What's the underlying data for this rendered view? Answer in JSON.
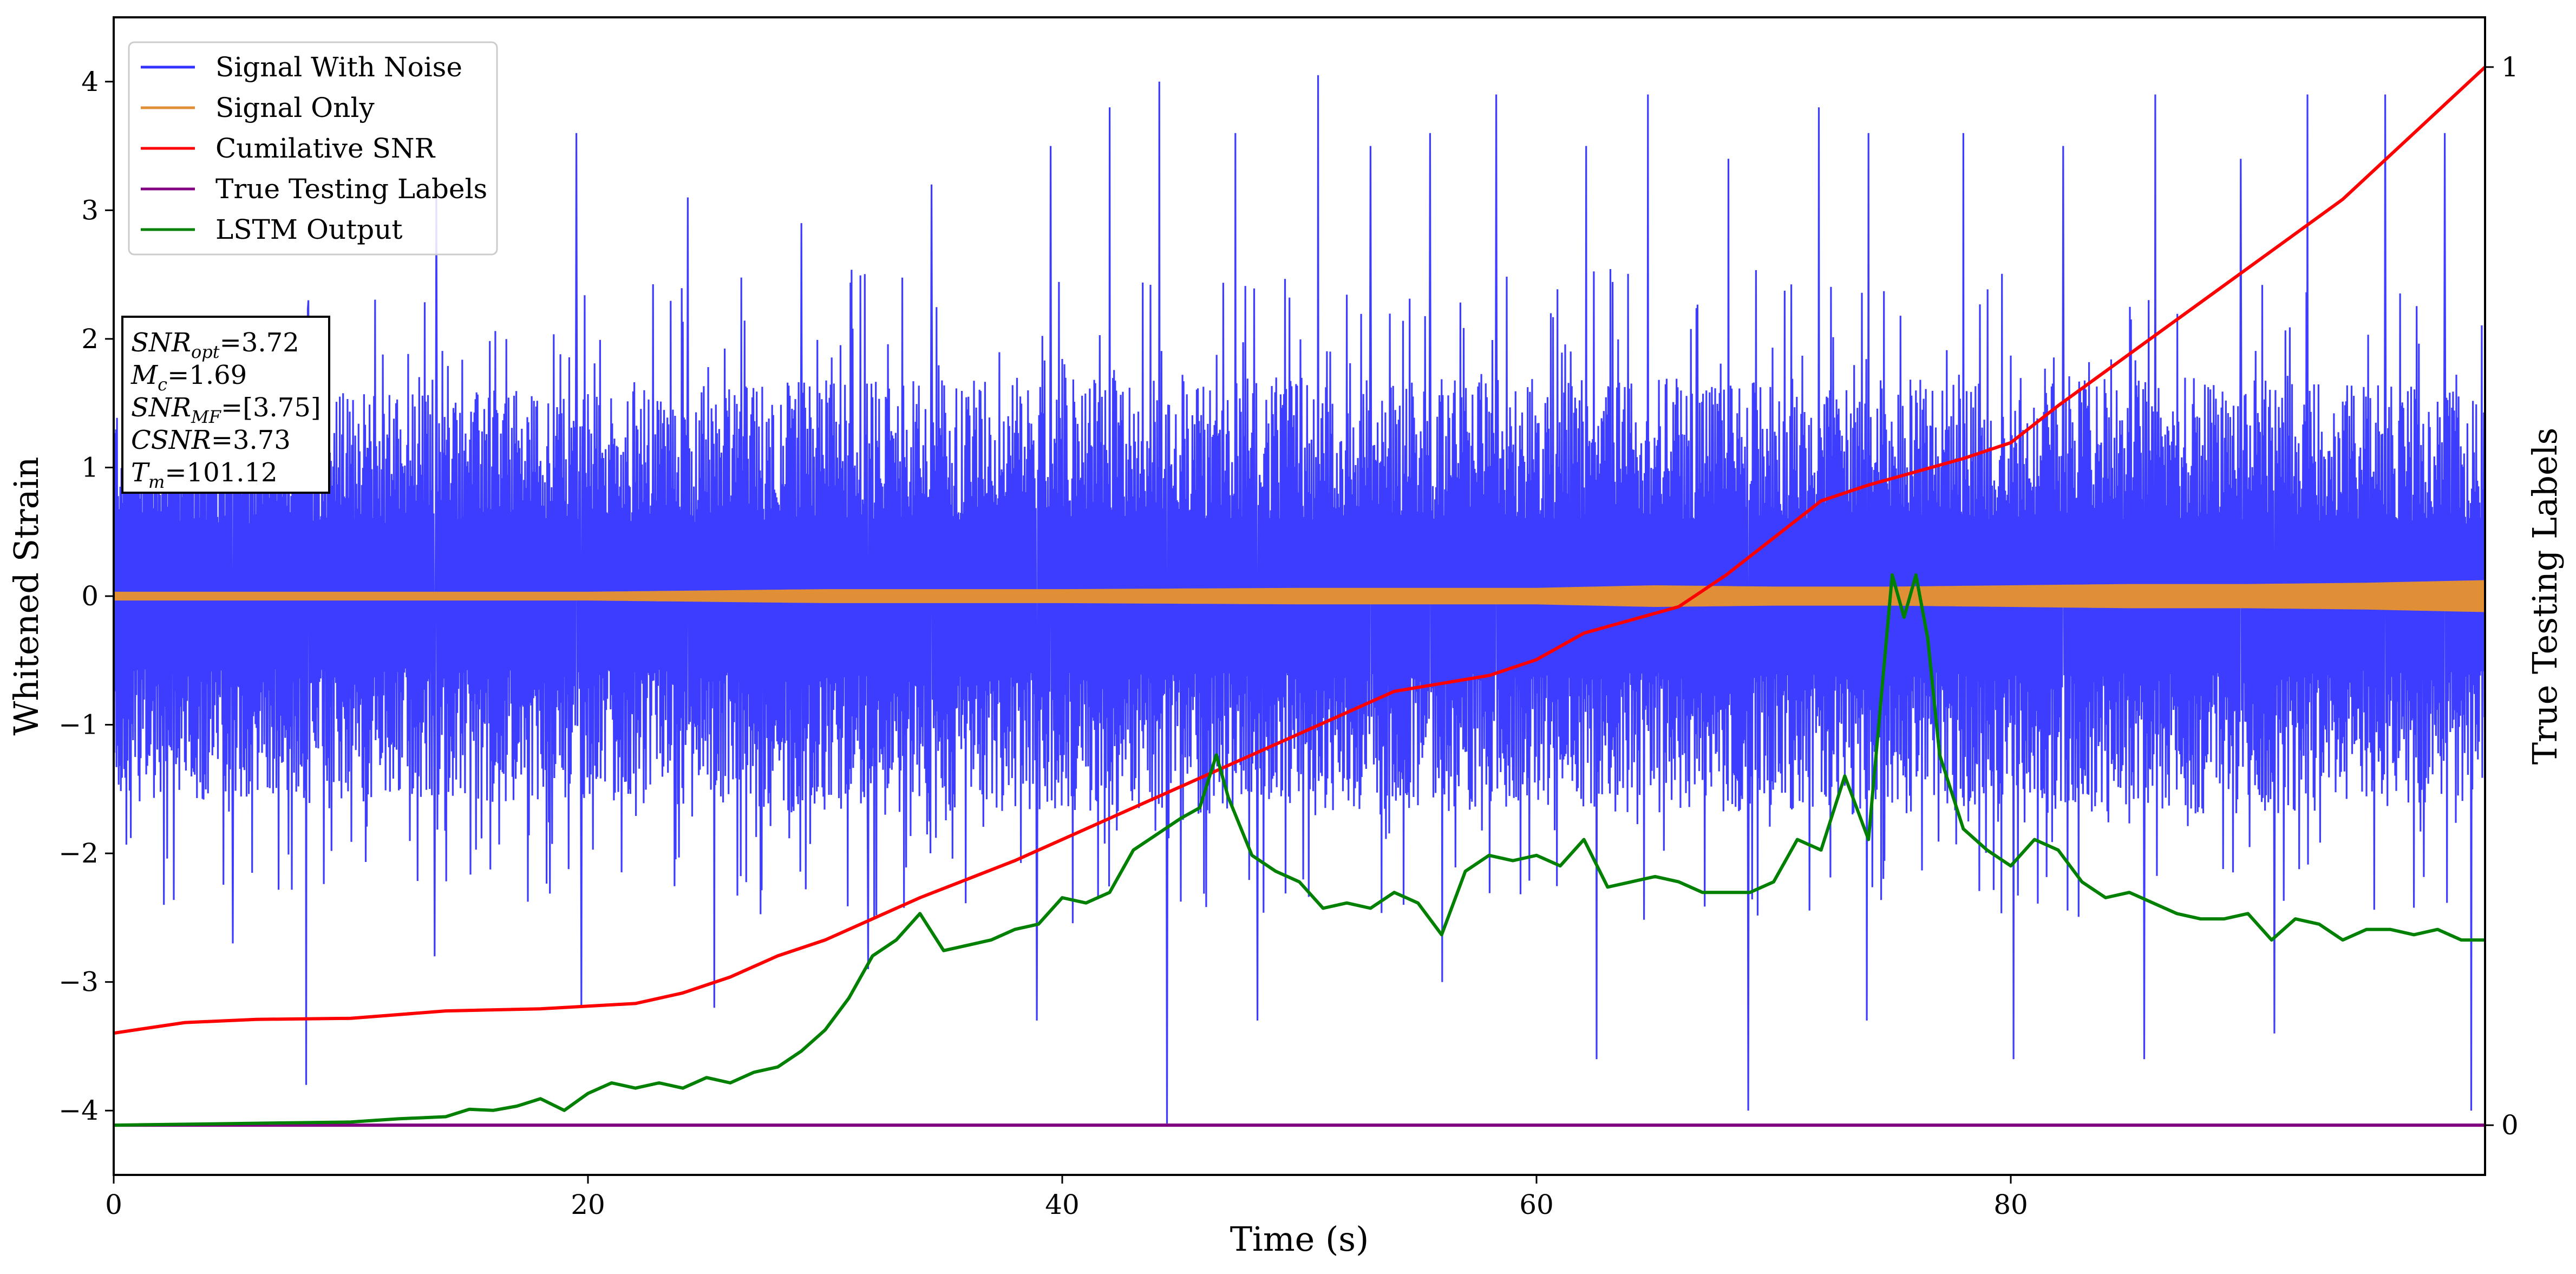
{
  "chart_data": {
    "type": "line",
    "xlabel": "Time (s)",
    "ylabel": "Whitened Strain",
    "y2label": "True Testing Labels",
    "xlim": [
      0,
      100
    ],
    "ylim": [
      -4.5,
      4.5
    ],
    "y2lim": [
      -0.047,
      1.047
    ],
    "xticks": [
      0,
      20,
      40,
      60,
      80
    ],
    "yticks": [
      -4,
      -3,
      -2,
      -1,
      0,
      1,
      2,
      3,
      4
    ],
    "y2ticks": [
      0,
      1
    ],
    "grid": false,
    "legend_position": "top-left",
    "colors": {
      "noise": "#3333ff",
      "signal": "#e08f37",
      "csnr": "#ff0000",
      "labels": "#800080",
      "lstm": "#008000"
    },
    "series": [
      {
        "name": "Signal With Noise",
        "axis": "left",
        "kind": "noise-band",
        "envelope_x": [
          0,
          10,
          20,
          30,
          40,
          50,
          60,
          70,
          80,
          90,
          100
        ],
        "core_upper": [
          1.6,
          1.6,
          1.6,
          1.7,
          1.7,
          1.7,
          1.7,
          1.7,
          1.7,
          1.7,
          1.6
        ],
        "core_lower": [
          -1.6,
          -1.6,
          -1.6,
          -1.7,
          -1.7,
          -1.7,
          -1.7,
          -1.7,
          -1.7,
          -1.7,
          -1.6
        ],
        "peaks_up": [
          {
            "x": 8.2,
            "y": 2.3
          },
          {
            "x": 13.6,
            "y": 3.2
          },
          {
            "x": 19.5,
            "y": 3.6
          },
          {
            "x": 24.2,
            "y": 3.1
          },
          {
            "x": 29.0,
            "y": 2.9
          },
          {
            "x": 34.5,
            "y": 3.2
          },
          {
            "x": 39.5,
            "y": 3.5
          },
          {
            "x": 42.0,
            "y": 3.8
          },
          {
            "x": 44.1,
            "y": 4.0
          },
          {
            "x": 47.3,
            "y": 3.6
          },
          {
            "x": 50.8,
            "y": 4.05
          },
          {
            "x": 53.0,
            "y": 3.5
          },
          {
            "x": 55.5,
            "y": 3.6
          },
          {
            "x": 58.3,
            "y": 3.9
          },
          {
            "x": 62.1,
            "y": 3.5
          },
          {
            "x": 64.7,
            "y": 3.9
          },
          {
            "x": 68.1,
            "y": 3.4
          },
          {
            "x": 71.9,
            "y": 3.8
          },
          {
            "x": 74.0,
            "y": 3.6
          },
          {
            "x": 78.0,
            "y": 3.6
          },
          {
            "x": 82.2,
            "y": 3.5
          },
          {
            "x": 86.1,
            "y": 3.9
          },
          {
            "x": 89.7,
            "y": 3.4
          },
          {
            "x": 92.5,
            "y": 3.9
          },
          {
            "x": 95.8,
            "y": 3.9
          },
          {
            "x": 98.3,
            "y": 3.6
          }
        ],
        "peaks_down": [
          {
            "x": 2.1,
            "y": -2.4
          },
          {
            "x": 5.0,
            "y": -2.7
          },
          {
            "x": 8.1,
            "y": -3.8
          },
          {
            "x": 13.5,
            "y": -2.8
          },
          {
            "x": 19.7,
            "y": -3.2
          },
          {
            "x": 25.3,
            "y": -3.2
          },
          {
            "x": 31.8,
            "y": -2.9
          },
          {
            "x": 38.9,
            "y": -3.3
          },
          {
            "x": 44.4,
            "y": -4.1
          },
          {
            "x": 48.2,
            "y": -3.3
          },
          {
            "x": 56.0,
            "y": -3.0
          },
          {
            "x": 62.5,
            "y": -3.6
          },
          {
            "x": 68.9,
            "y": -4.0
          },
          {
            "x": 73.9,
            "y": -3.3
          },
          {
            "x": 80.1,
            "y": -3.6
          },
          {
            "x": 85.6,
            "y": -3.6
          },
          {
            "x": 91.1,
            "y": -3.4
          },
          {
            "x": 99.4,
            "y": -4.0
          }
        ]
      },
      {
        "name": "Signal Only",
        "axis": "left",
        "kind": "chirp-band",
        "x": [
          0,
          10,
          20,
          25,
          30,
          40,
          50,
          60,
          65,
          70,
          75,
          80,
          85,
          90,
          95,
          100
        ],
        "amplitude": [
          0.03,
          0.03,
          0.03,
          0.04,
          0.05,
          0.05,
          0.06,
          0.06,
          0.08,
          0.07,
          0.07,
          0.08,
          0.09,
          0.09,
          0.1,
          0.12
        ]
      },
      {
        "name": "Cumilative SNR",
        "axis": "right",
        "x": [
          0,
          3,
          6,
          10,
          14,
          18,
          22,
          24,
          26,
          28,
          30,
          34,
          38,
          42,
          46,
          50,
          54,
          58,
          60,
          62,
          66,
          68,
          70,
          72,
          74,
          78,
          80,
          82,
          86,
          90,
          94,
          100
        ],
        "y": [
          0.087,
          0.097,
          0.1,
          0.101,
          0.108,
          0.11,
          0.115,
          0.125,
          0.14,
          0.16,
          0.175,
          0.215,
          0.25,
          0.29,
          0.33,
          0.37,
          0.41,
          0.425,
          0.44,
          0.465,
          0.49,
          0.52,
          0.555,
          0.59,
          0.605,
          0.63,
          0.645,
          0.68,
          0.745,
          0.81,
          0.875,
          1.0
        ]
      },
      {
        "name": "True Testing Labels",
        "axis": "right",
        "x": [
          0,
          100
        ],
        "y": [
          0,
          0
        ]
      },
      {
        "name": "LSTM Output",
        "axis": "right",
        "x": [
          0,
          10,
          12,
          14,
          15,
          16,
          17,
          18,
          19,
          20,
          21,
          22,
          23,
          24,
          25,
          26,
          27,
          28,
          29,
          30,
          31,
          32,
          33,
          34,
          35,
          36,
          37,
          38,
          39,
          40,
          41,
          42,
          43,
          44,
          45,
          45.8,
          46.5,
          47,
          48,
          49,
          50,
          51,
          52,
          53,
          54,
          55,
          56,
          57,
          58,
          59,
          60,
          61,
          62,
          63,
          64,
          65,
          66,
          67,
          68,
          69,
          70,
          71,
          72,
          73,
          74,
          75,
          75.5,
          76,
          76.5,
          77,
          78,
          79,
          80,
          81,
          82,
          83,
          84,
          85,
          86,
          87,
          88,
          89,
          90,
          91,
          92,
          93,
          94,
          95,
          96,
          97,
          98,
          99,
          100
        ],
        "y": [
          0,
          0.003,
          0.006,
          0.008,
          0.015,
          0.014,
          0.018,
          0.025,
          0.014,
          0.03,
          0.04,
          0.035,
          0.04,
          0.035,
          0.045,
          0.04,
          0.05,
          0.055,
          0.07,
          0.09,
          0.12,
          0.16,
          0.175,
          0.2,
          0.165,
          0.17,
          0.175,
          0.185,
          0.19,
          0.215,
          0.21,
          0.22,
          0.26,
          0.275,
          0.29,
          0.3,
          0.35,
          0.31,
          0.255,
          0.24,
          0.23,
          0.205,
          0.21,
          0.205,
          0.22,
          0.21,
          0.18,
          0.24,
          0.255,
          0.25,
          0.255,
          0.245,
          0.27,
          0.225,
          0.23,
          0.235,
          0.23,
          0.22,
          0.22,
          0.22,
          0.23,
          0.27,
          0.26,
          0.33,
          0.27,
          0.52,
          0.48,
          0.52,
          0.46,
          0.35,
          0.28,
          0.26,
          0.245,
          0.27,
          0.26,
          0.23,
          0.215,
          0.22,
          0.21,
          0.2,
          0.195,
          0.195,
          0.2,
          0.175,
          0.195,
          0.19,
          0.175,
          0.185,
          0.185,
          0.18,
          0.185,
          0.175,
          0.175
        ]
      }
    ],
    "annotation": [
      {
        "base": "SNR",
        "sub": "opt",
        "value": "=3.72"
      },
      {
        "base": "M",
        "sub": "c",
        "value": "=1.69"
      },
      {
        "base": "SNR",
        "sub": "MF",
        "value": "=[3.75]"
      },
      {
        "base": "CSNR",
        "sub": "",
        "value": "=3.73"
      },
      {
        "base": "T",
        "sub": "m",
        "value": "=101.12"
      }
    ]
  }
}
